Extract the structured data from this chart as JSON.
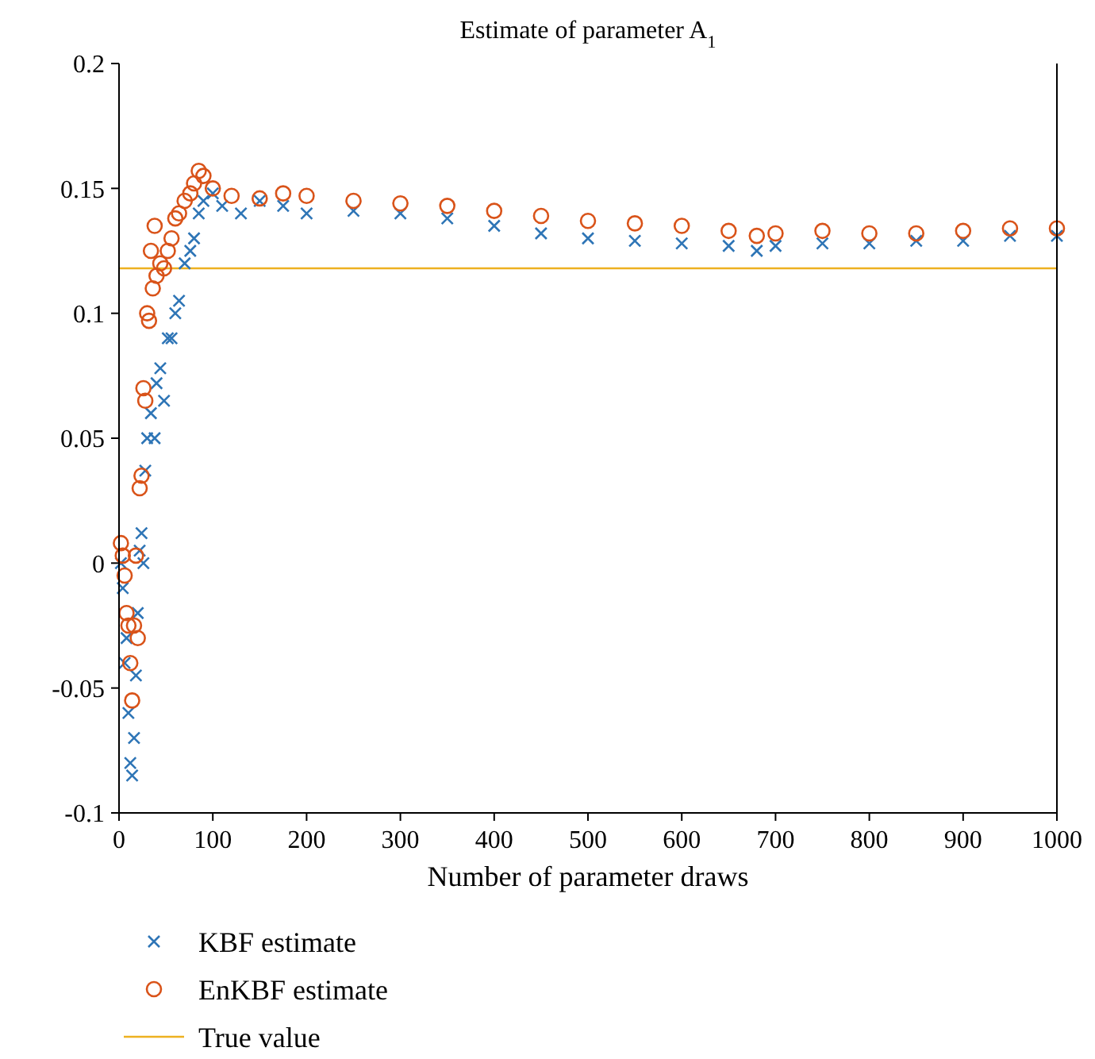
{
  "chart_data": {
    "type": "scatter",
    "title": "Estimate of parameter A$_{1}$",
    "xlabel": "Number of parameter draws",
    "xlim": [
      0,
      1000
    ],
    "xticks": [
      0,
      100,
      200,
      300,
      400,
      500,
      600,
      700,
      800,
      900,
      1000
    ],
    "ylim": [
      -0.1,
      0.2
    ],
    "yticks": [
      -0.1,
      -0.05,
      0,
      0.05,
      0.1,
      0.15,
      0.2
    ],
    "grid": false,
    "legend": "bottom",
    "series": [
      {
        "name": "KBF estimate",
        "color": "#2e75b6",
        "marker": "cross",
        "x": [
          2,
          4,
          6,
          8,
          10,
          12,
          14,
          16,
          18,
          20,
          22,
          24,
          26,
          28,
          30,
          34,
          38,
          40,
          44,
          48,
          52,
          56,
          60,
          64,
          70,
          76,
          80,
          85,
          90,
          100,
          110,
          130,
          150,
          175,
          200,
          250,
          300,
          350,
          400,
          450,
          500,
          550,
          600,
          650,
          680,
          700,
          750,
          800,
          850,
          900,
          950,
          1000
        ],
        "values": [
          0.0,
          -0.01,
          -0.04,
          -0.03,
          -0.06,
          -0.08,
          -0.085,
          -0.07,
          -0.045,
          -0.02,
          0.005,
          0.012,
          0.0,
          0.037,
          0.05,
          0.06,
          0.05,
          0.072,
          0.078,
          0.065,
          0.09,
          0.09,
          0.1,
          0.105,
          0.12,
          0.125,
          0.13,
          0.14,
          0.145,
          0.148,
          0.143,
          0.14,
          0.145,
          0.143,
          0.14,
          0.141,
          0.14,
          0.138,
          0.135,
          0.132,
          0.13,
          0.129,
          0.128,
          0.127,
          0.125,
          0.127,
          0.128,
          0.128,
          0.129,
          0.129,
          0.131,
          0.131
        ]
      },
      {
        "name": "EnKBF estimate",
        "color": "#d95319",
        "marker": "circle",
        "x": [
          2,
          4,
          6,
          8,
          10,
          12,
          14,
          16,
          18,
          20,
          22,
          24,
          26,
          28,
          30,
          32,
          34,
          36,
          38,
          40,
          44,
          48,
          52,
          56,
          60,
          64,
          70,
          76,
          80,
          85,
          90,
          100,
          120,
          150,
          175,
          200,
          250,
          300,
          350,
          400,
          450,
          500,
          550,
          600,
          650,
          680,
          700,
          750,
          800,
          850,
          900,
          950,
          1000
        ],
        "values": [
          0.008,
          0.003,
          -0.005,
          -0.02,
          -0.025,
          -0.04,
          -0.055,
          -0.025,
          0.003,
          -0.03,
          0.03,
          0.035,
          0.07,
          0.065,
          0.1,
          0.097,
          0.125,
          0.11,
          0.135,
          0.115,
          0.12,
          0.118,
          0.125,
          0.13,
          0.138,
          0.14,
          0.145,
          0.148,
          0.152,
          0.157,
          0.155,
          0.15,
          0.147,
          0.146,
          0.148,
          0.147,
          0.145,
          0.144,
          0.143,
          0.141,
          0.139,
          0.137,
          0.136,
          0.135,
          0.133,
          0.131,
          0.132,
          0.133,
          0.132,
          0.132,
          0.133,
          0.134,
          0.134
        ]
      }
    ],
    "ref_lines": [
      {
        "axis": "y",
        "value": 0.118,
        "label": "True value",
        "color": "#edb120"
      }
    ]
  }
}
